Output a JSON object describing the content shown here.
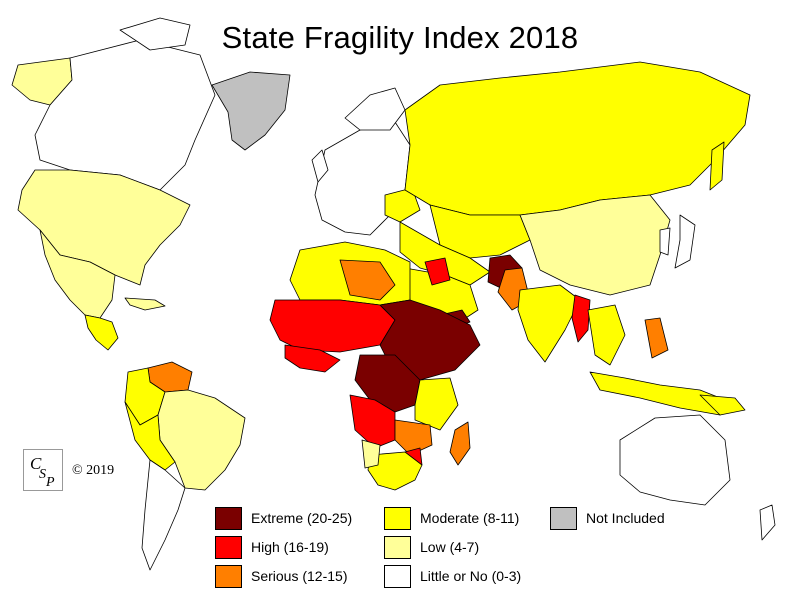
{
  "title": "State Fragility Index 2018",
  "copyright": "© 2019",
  "logo_text": "CSP",
  "colors": {
    "extreme": "#7a0000",
    "high": "#ff0000",
    "serious": "#ff7f00",
    "moderate": "#ffff00",
    "low": "#ffff99",
    "little": "#ffffff",
    "not_included": "#c0c0c0",
    "ocean": "#ffffff"
  },
  "legend": [
    {
      "key": "extreme",
      "label": "Extreme (20-25)"
    },
    {
      "key": "high",
      "label": "High (16-19)"
    },
    {
      "key": "serious",
      "label": "Serious (12-15)"
    },
    {
      "key": "moderate",
      "label": "Moderate (8-11)"
    },
    {
      "key": "low",
      "label": "Low (4-7)"
    },
    {
      "key": "little",
      "label": "Little or No (0-3)"
    },
    {
      "key": "not_included",
      "label": "Not Included"
    }
  ]
}
